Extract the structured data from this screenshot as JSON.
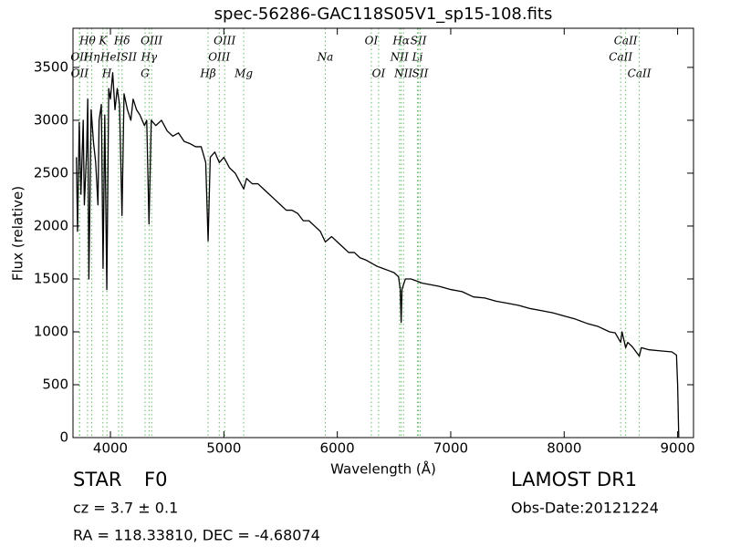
{
  "chart_data": {
    "type": "line",
    "title": "spec-56286-GAC118S05V1_sp15-108.fits",
    "x_label": "Wavelength (Å)",
    "y_label": "Flux (relative)",
    "xlim": [
      3670,
      9140
    ],
    "ylim": [
      0,
      3870
    ],
    "xticks": [
      4000,
      5000,
      6000,
      7000,
      8000,
      9000
    ],
    "yticks": [
      0,
      500,
      1000,
      1500,
      2000,
      2500,
      3000,
      3500
    ],
    "color": "#000000",
    "annotation_color": "#66bb66",
    "x": [
      3700,
      3710,
      3725,
      3740,
      3760,
      3770,
      3790,
      3800,
      3810,
      3830,
      3850,
      3870,
      3890,
      3900,
      3920,
      3935,
      3950,
      3968,
      3985,
      4000,
      4020,
      4040,
      4060,
      4080,
      4102,
      4120,
      4150,
      4180,
      4200,
      4230,
      4260,
      4300,
      4320,
      4340,
      4360,
      4400,
      4450,
      4500,
      4550,
      4600,
      4650,
      4700,
      4750,
      4800,
      4840,
      4861,
      4880,
      4920,
      4960,
      5000,
      5050,
      5100,
      5150,
      5175,
      5200,
      5250,
      5300,
      5350,
      5400,
      5450,
      5500,
      5550,
      5600,
      5650,
      5700,
      5750,
      5800,
      5850,
      5894,
      5950,
      6000,
      6050,
      6100,
      6150,
      6200,
      6250,
      6300,
      6350,
      6400,
      6450,
      6500,
      6540,
      6555,
      6563,
      6570,
      6600,
      6650,
      6700,
      6750,
      6800,
      6900,
      7000,
      7100,
      7200,
      7300,
      7400,
      7500,
      7600,
      7700,
      7800,
      7900,
      8000,
      8100,
      8200,
      8300,
      8400,
      8450,
      8498,
      8510,
      8542,
      8560,
      8600,
      8662,
      8680,
      8750,
      8850,
      8950,
      8990,
      9000,
      9010
    ],
    "values": [
      2650,
      1950,
      2980,
      2300,
      3000,
      2200,
      2700,
      3200,
      1500,
      3100,
      2800,
      2600,
      2200,
      3000,
      3150,
      1600,
      3050,
      1400,
      3300,
      3200,
      3450,
      3100,
      3300,
      3150,
      2100,
      3250,
      3100,
      3000,
      3200,
      3100,
      3050,
      2950,
      3000,
      2020,
      3000,
      2950,
      3000,
      2900,
      2850,
      2880,
      2800,
      2780,
      2750,
      2750,
      2600,
      1860,
      2650,
      2700,
      2600,
      2650,
      2550,
      2500,
      2400,
      2350,
      2450,
      2400,
      2400,
      2350,
      2300,
      2250,
      2200,
      2150,
      2150,
      2120,
      2050,
      2050,
      2000,
      1950,
      1850,
      1900,
      1850,
      1800,
      1750,
      1750,
      1700,
      1680,
      1650,
      1620,
      1600,
      1580,
      1560,
      1520,
      1400,
      1090,
      1400,
      1500,
      1500,
      1480,
      1460,
      1450,
      1430,
      1400,
      1380,
      1330,
      1320,
      1290,
      1270,
      1250,
      1220,
      1200,
      1180,
      1150,
      1120,
      1080,
      1050,
      1000,
      990,
      900,
      1000,
      850,
      900,
      860,
      770,
      850,
      830,
      820,
      810,
      780,
      500,
      0
    ],
    "annotations": [
      {
        "label": "Hθ",
        "x": 3798
      },
      {
        "label": "OII",
        "x": 3727
      },
      {
        "label": "OII",
        "x": 3729
      },
      {
        "label": "K",
        "x": 3934
      },
      {
        "label": "Hη",
        "x": 3835
      },
      {
        "label": "H",
        "x": 3969
      },
      {
        "label": "Hδ",
        "x": 4102
      },
      {
        "label": "HeISII",
        "x": 4072
      },
      {
        "label": "G",
        "x": 4305
      },
      {
        "label": "OIII",
        "x": 4363
      },
      {
        "label": "Hγ",
        "x": 4341
      },
      {
        "label": "Hβ",
        "x": 4861
      },
      {
        "label": "OIII",
        "x": 5007
      },
      {
        "label": "OIII",
        "x": 4959
      },
      {
        "label": "Mg",
        "x": 5175
      },
      {
        "label": "OI",
        "x": 6300
      },
      {
        "label": "Na",
        "x": 5894
      },
      {
        "label": "OI",
        "x": 6364
      },
      {
        "label": "Hα",
        "x": 6563
      },
      {
        "label": "NII",
        "x": 6548
      },
      {
        "label": "NII",
        "x": 6583
      },
      {
        "label": "SII",
        "x": 6716
      },
      {
        "label": "Li",
        "x": 6707
      },
      {
        "label": "SII",
        "x": 6731
      },
      {
        "label": "CaII",
        "x": 8542
      },
      {
        "label": "CaII",
        "x": 8498
      },
      {
        "label": "CaII",
        "x": 8662
      }
    ],
    "footer": {
      "object_class": "STAR",
      "subclass": "F0",
      "survey": "LAMOST DR1",
      "redshift": "cz = 3.7 ± 0.1",
      "obs_date": "Obs-Date:20121224",
      "coords": "RA = 118.33810, DEC = -4.68074"
    }
  }
}
